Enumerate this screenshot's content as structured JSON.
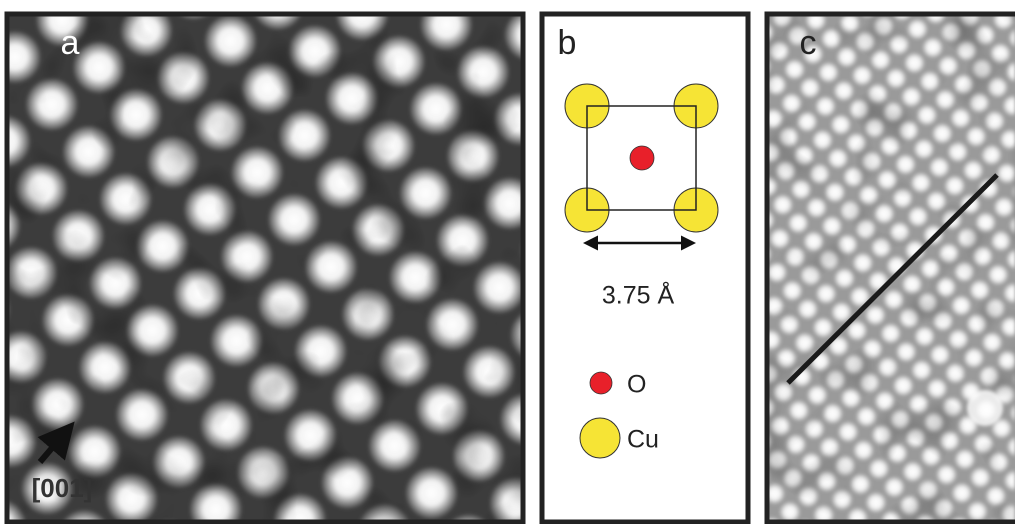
{
  "panels": [
    {
      "label": "a",
      "annotation": "[001]"
    },
    {
      "label": "b",
      "scale_label": "3.75 Å",
      "legend": [
        {
          "label": "O"
        },
        {
          "label": "Cu"
        }
      ]
    },
    {
      "label": "c"
    }
  ]
}
